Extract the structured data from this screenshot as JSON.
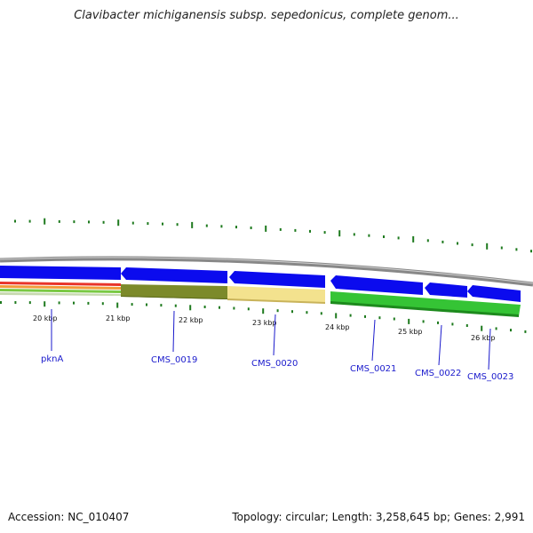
{
  "title": "Clavibacter michiganensis subsp. sepedonicus, complete genom...",
  "footer": {
    "accession": "Accession: NC_010407",
    "stats": "Topology: circular; Length: 3,258,645 bp; Genes: 2,991"
  },
  "colors": {
    "gene_forward": "#0b0bee",
    "ruler": "#888888",
    "tick": "#1e7a1e",
    "label": "#1a1acc",
    "gc_positive": "#2fbf2f",
    "gc_negative": "#f0e08a",
    "gc_olive": "#7c8a2a"
  },
  "ticks": [
    "20 kbp",
    "21 kbp",
    "22 kbp",
    "23 kbp",
    "24 kbp",
    "25 kbp",
    "26 kbp"
  ],
  "genes": [
    {
      "label": "pknA"
    },
    {
      "label": "CMS_0019"
    },
    {
      "label": "CMS_0020"
    },
    {
      "label": "CMS_0021"
    },
    {
      "label": "CMS_0022"
    },
    {
      "label": "CMS_0023"
    }
  ]
}
